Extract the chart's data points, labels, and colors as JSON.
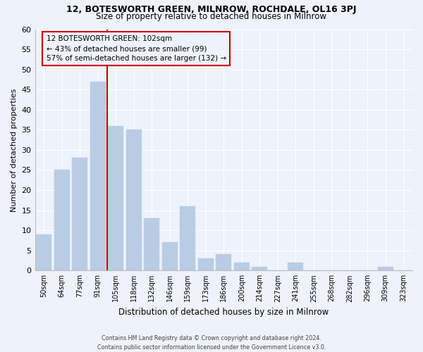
{
  "title1": "12, BOTESWORTH GREEN, MILNROW, ROCHDALE, OL16 3PJ",
  "title2": "Size of property relative to detached houses in Milnrow",
  "xlabel": "Distribution of detached houses by size in Milnrow",
  "ylabel": "Number of detached properties",
  "categories": [
    "50sqm",
    "64sqm",
    "77sqm",
    "91sqm",
    "105sqm",
    "118sqm",
    "132sqm",
    "146sqm",
    "159sqm",
    "173sqm",
    "186sqm",
    "200sqm",
    "214sqm",
    "227sqm",
    "241sqm",
    "255sqm",
    "268sqm",
    "282sqm",
    "296sqm",
    "309sqm",
    "323sqm"
  ],
  "values": [
    9,
    25,
    28,
    47,
    36,
    35,
    13,
    7,
    16,
    3,
    4,
    2,
    1,
    0,
    2,
    0,
    0,
    0,
    0,
    1,
    0
  ],
  "bar_color": "#b8cce4",
  "bar_edgecolor": "#b8cce4",
  "property_line_color": "#cc0000",
  "annotation_text": "12 BOTESWORTH GREEN: 102sqm\n← 43% of detached houses are smaller (99)\n57% of semi-detached houses are larger (132) →",
  "annotation_box_edgecolor": "#cc0000",
  "ylim": [
    0,
    60
  ],
  "yticks": [
    0,
    5,
    10,
    15,
    20,
    25,
    30,
    35,
    40,
    45,
    50,
    55,
    60
  ],
  "background_color": "#eef2fa",
  "grid_color": "#ffffff",
  "footer_line1": "Contains HM Land Registry data © Crown copyright and database right 2024.",
  "footer_line2": "Contains public sector information licensed under the Government Licence v3.0."
}
